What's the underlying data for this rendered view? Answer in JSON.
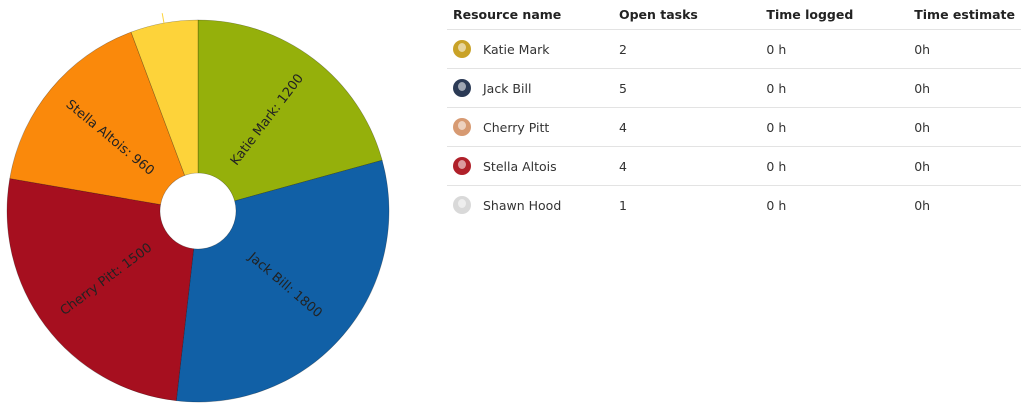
{
  "chart_data": {
    "type": "pie",
    "donut": true,
    "slices": [
      {
        "name": "Katie Mark",
        "value": 1200,
        "label": "Katie Mark: 1200",
        "color": "#95b00b"
      },
      {
        "name": "Jack Bill",
        "value": 1800,
        "label": "Jack Bill: 1800",
        "color": "#1160a6"
      },
      {
        "name": "Cherry Pitt",
        "value": 1500,
        "label": "Cherry Pitt: 1500",
        "color": "#a60f1f"
      },
      {
        "name": "Stella Altois",
        "value": 960,
        "label": "Stella Altois: 960",
        "color": "#fa890b"
      },
      {
        "name": "Shawn Hood",
        "value": 330,
        "label": "",
        "color": "#fdd33a"
      }
    ]
  },
  "table": {
    "headers": [
      "Resource name",
      "Open tasks",
      "Time logged",
      "Time estimate"
    ],
    "rows": [
      {
        "name": "Katie Mark",
        "avatar_color": "#c9a227",
        "open_tasks": "2",
        "time_logged": "0 h",
        "time_estimate": "0h"
      },
      {
        "name": "Jack Bill",
        "avatar_color": "#2b3a55",
        "open_tasks": "5",
        "time_logged": "0 h",
        "time_estimate": "0h"
      },
      {
        "name": "Cherry Pitt",
        "avatar_color": "#d79a72",
        "open_tasks": "4",
        "time_logged": "0 h",
        "time_estimate": "0h"
      },
      {
        "name": "Stella Altois",
        "avatar_color": "#b0202a",
        "open_tasks": "4",
        "time_logged": "0 h",
        "time_estimate": "0h"
      },
      {
        "name": "Shawn Hood",
        "avatar_color": "#d9d9d9",
        "open_tasks": "1",
        "time_logged": "0 h",
        "time_estimate": "0h"
      }
    ]
  }
}
